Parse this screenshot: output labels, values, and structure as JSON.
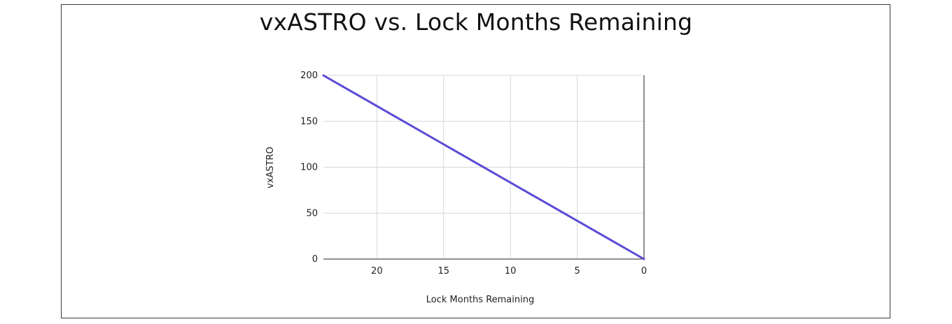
{
  "chart_data": {
    "type": "line",
    "title": "vxASTRO vs. Lock Months Remaining",
    "xlabel": "Lock Months Remaining",
    "ylabel": "vxASTRO",
    "x_reversed": true,
    "xlim": [
      24,
      0
    ],
    "ylim": [
      0,
      200
    ],
    "x_ticks": [
      20,
      15,
      10,
      5,
      0
    ],
    "y_ticks": [
      0,
      50,
      100,
      150,
      200
    ],
    "grid": true,
    "series": [
      {
        "color": "#5a4bd6",
        "x": [
          24,
          20,
          15,
          10,
          5,
          0
        ],
        "y": [
          200,
          166.7,
          125,
          83.3,
          41.7,
          0
        ]
      }
    ]
  }
}
